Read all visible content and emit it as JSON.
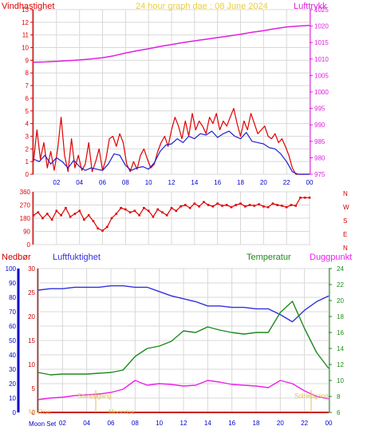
{
  "header": {
    "title": "24 hour graph dae : 08 June 2024",
    "wind_label": "Vindhastighet",
    "pressure_label": "Lufttrykk"
  },
  "colors": {
    "wind": "#e00000",
    "gust_avg": "#2020d0",
    "pressure": "#e020e0",
    "direction": "#e00000",
    "humidity": "#3030e0",
    "temperature": "#1e8a1e",
    "dewpoint": "#ee22ee",
    "rain": "#cc0000",
    "title": "#e8d040",
    "sun_events": "#e0c050",
    "rain_axis": "#0000cc"
  },
  "bottom_labels": {
    "rain_label": "Nedbør",
    "humidity_label": "Luftfuktighet",
    "temperature_label": "Temperatur",
    "dewpoint_label": "Duggpunkt",
    "moon_set": "Moon Set",
    "moonrise": "Moonrise",
    "sunrise": "Soloppgang",
    "sunset": "Solnedgang",
    "moon_rise_short": "Mr Rise"
  },
  "direction_letters": [
    "N",
    "W",
    "S",
    "E",
    "N"
  ],
  "chart_data": [
    {
      "type": "line",
      "title": "24 hour graph dae : 08 June 2024",
      "xlabel": "",
      "x_ticks": [
        "02",
        "04",
        "06",
        "08",
        "10",
        "12",
        "14",
        "16",
        "18",
        "20",
        "22",
        "00"
      ],
      "x_range_hours": [
        0,
        24
      ],
      "y_left_label": "Vindhastighet",
      "y_left_range": [
        0,
        13
      ],
      "y_left_ticks": [
        "0",
        "1",
        "2",
        "3",
        "4",
        "5",
        "6",
        "7",
        "8",
        "9",
        "10",
        "11",
        "12",
        "13"
      ],
      "y_right_label": "Lufttrykk",
      "y_right_range": [
        975,
        1025
      ],
      "y_right_ticks": [
        "975",
        "980",
        "985",
        "990",
        "995",
        "1000",
        "1005",
        "1010",
        "1015",
        "1020",
        "1025"
      ],
      "series": [
        {
          "name": "Vindhastighet",
          "axis": "left",
          "hours": [
            0.0,
            0.3,
            0.6,
            0.9,
            1.2,
            1.5,
            1.8,
            2.1,
            2.4,
            2.7,
            3.0,
            3.3,
            3.6,
            3.9,
            4.2,
            4.5,
            4.8,
            5.1,
            5.4,
            5.7,
            6.0,
            6.3,
            6.6,
            6.9,
            7.2,
            7.5,
            7.8,
            8.1,
            8.4,
            8.7,
            9.0,
            9.3,
            9.6,
            9.9,
            10.2,
            10.5,
            10.8,
            11.1,
            11.4,
            11.7,
            12.0,
            12.3,
            12.6,
            12.9,
            13.2,
            13.5,
            13.8,
            14.1,
            14.4,
            14.7,
            15.0,
            15.3,
            15.6,
            15.9,
            16.2,
            16.5,
            16.8,
            17.1,
            17.4,
            17.7,
            18.0,
            18.3,
            18.6,
            18.9,
            19.2,
            19.5,
            19.8,
            20.1,
            20.4,
            20.7,
            21.0,
            21.3,
            21.6,
            21.9,
            22.2,
            22.5,
            22.8,
            23.1,
            23.4,
            23.7,
            24.0
          ],
          "values": [
            1.0,
            3.5,
            1.2,
            2.5,
            0.5,
            1.8,
            0.3,
            2.0,
            4.5,
            1.5,
            0.2,
            2.8,
            0.5,
            1.5,
            0.3,
            0.8,
            2.5,
            0.2,
            1.0,
            2.0,
            0.3,
            1.2,
            2.8,
            3.0,
            2.2,
            3.2,
            2.5,
            0.8,
            0.2,
            1.0,
            0.4,
            1.5,
            2.0,
            1.2,
            0.5,
            0.8,
            1.8,
            2.5,
            3.0,
            2.2,
            3.5,
            4.5,
            3.8,
            2.8,
            4.2,
            3.0,
            4.8,
            3.5,
            4.2,
            3.8,
            3.2,
            4.5,
            4.0,
            4.8,
            3.5,
            4.2,
            3.8,
            4.5,
            5.2,
            4.0,
            3.0,
            4.2,
            3.5,
            4.8,
            4.0,
            3.2,
            3.5,
            3.8,
            3.0,
            2.8,
            3.2,
            2.5,
            2.8,
            2.2,
            1.5,
            0.5,
            0.0,
            0.0,
            0.0,
            0.0,
            0.0
          ]
        },
        {
          "name": "",
          "axis": "left",
          "hours": [
            0.0,
            0.5,
            1.0,
            1.5,
            2.0,
            2.5,
            3.0,
            3.5,
            4.0,
            4.5,
            5.0,
            5.5,
            6.0,
            6.5,
            7.0,
            7.5,
            8.0,
            8.5,
            9.0,
            9.5,
            10.0,
            10.5,
            11.0,
            11.5,
            12.0,
            12.5,
            13.0,
            13.5,
            14.0,
            14.5,
            15.0,
            15.5,
            16.0,
            16.5,
            17.0,
            17.5,
            18.0,
            18.5,
            19.0,
            19.5,
            20.0,
            20.5,
            21.0,
            21.5,
            22.0,
            22.5,
            23.0,
            23.5,
            24.0
          ],
          "values": [
            1.2,
            1.0,
            1.5,
            0.8,
            1.3,
            1.0,
            0.5,
            1.1,
            0.6,
            0.3,
            0.5,
            0.4,
            0.3,
            0.8,
            1.6,
            1.5,
            0.7,
            0.3,
            0.5,
            0.6,
            0.4,
            0.9,
            1.8,
            2.3,
            2.4,
            2.8,
            2.5,
            3.0,
            2.8,
            3.2,
            3.1,
            3.4,
            2.9,
            3.2,
            3.4,
            3.0,
            2.8,
            3.3,
            2.6,
            2.5,
            2.4,
            2.1,
            2.0,
            1.6,
            1.0,
            0.2,
            0.0,
            0.0,
            0.0
          ]
        },
        {
          "name": "Lufttrykk",
          "axis": "right",
          "hours": [
            0,
            1,
            2,
            3,
            4,
            5,
            6,
            7,
            8,
            9,
            10,
            11,
            12,
            13,
            14,
            15,
            16,
            17,
            18,
            19,
            20,
            21,
            22,
            23,
            24
          ],
          "values": [
            1009.0,
            1009.1,
            1009.3,
            1009.5,
            1009.7,
            1010.0,
            1010.4,
            1011.0,
            1011.8,
            1012.5,
            1013.1,
            1013.8,
            1014.4,
            1015.0,
            1015.5,
            1016.0,
            1016.5,
            1017.0,
            1017.5,
            1018.1,
            1018.6,
            1019.2,
            1019.7,
            1020.0,
            1020.2
          ]
        }
      ]
    },
    {
      "type": "scatter",
      "title": "",
      "x_ticks": [
        "02",
        "04",
        "06",
        "08",
        "10",
        "12",
        "14",
        "16",
        "18",
        "20",
        "22",
        "00"
      ],
      "y_range": [
        0,
        360
      ],
      "y_ticks": [
        "0",
        "90",
        "180",
        "270",
        "360"
      ],
      "series": [
        {
          "name": "",
          "hours": [
            0.0,
            0.4,
            0.8,
            1.2,
            1.6,
            2.0,
            2.4,
            2.8,
            3.2,
            3.6,
            4.0,
            4.4,
            4.8,
            5.2,
            5.6,
            6.0,
            6.4,
            6.8,
            7.2,
            7.6,
            8.0,
            8.4,
            8.8,
            9.2,
            9.6,
            10.0,
            10.4,
            10.8,
            11.2,
            11.6,
            12.0,
            12.4,
            12.8,
            13.2,
            13.6,
            14.0,
            14.4,
            14.8,
            15.2,
            15.6,
            16.0,
            16.4,
            16.8,
            17.2,
            17.6,
            18.0,
            18.4,
            18.8,
            19.2,
            19.6,
            20.0,
            20.4,
            20.8,
            21.2,
            21.6,
            22.0,
            22.4,
            22.8,
            23.2,
            23.6,
            24.0
          ],
          "values": [
            200,
            220,
            180,
            210,
            170,
            230,
            200,
            250,
            190,
            210,
            230,
            170,
            200,
            160,
            110,
            95,
            120,
            180,
            210,
            250,
            240,
            220,
            230,
            200,
            250,
            230,
            190,
            240,
            220,
            200,
            250,
            230,
            260,
            270,
            250,
            280,
            260,
            290,
            270,
            260,
            280,
            265,
            270,
            255,
            270,
            280,
            260,
            270,
            265,
            275,
            260,
            255,
            280,
            270,
            265,
            255,
            270,
            265,
            320,
            320,
            320
          ]
        }
      ]
    },
    {
      "type": "line",
      "title": "",
      "x_ticks": [
        "02",
        "04",
        "06",
        "08",
        "10",
        "12",
        "14",
        "16",
        "18",
        "20",
        "22",
        "00"
      ],
      "y_humidity_range": [
        0,
        100
      ],
      "y_humidity_ticks": [
        "0",
        "10",
        "20",
        "30",
        "40",
        "50",
        "60",
        "70",
        "80",
        "90",
        "100"
      ],
      "y_rain_range": [
        0,
        30
      ],
      "y_rain_ticks": [
        "0",
        "5",
        "10",
        "15",
        "20",
        "25",
        "30"
      ],
      "y_temp_range": [
        6,
        24
      ],
      "y_temp_ticks": [
        "6",
        "8",
        "10",
        "12",
        "14",
        "16",
        "18",
        "20",
        "22",
        "24"
      ],
      "series": [
        {
          "name": "Luftfuktighet",
          "axis": "humidity",
          "hours": [
            0,
            1,
            2,
            3,
            4,
            5,
            6,
            7,
            8,
            9,
            10,
            11,
            12,
            13,
            14,
            15,
            16,
            17,
            18,
            19,
            20,
            21,
            22,
            23,
            24
          ],
          "values": [
            85,
            86,
            86,
            87,
            87,
            87,
            88,
            88,
            87,
            87,
            84,
            81,
            79,
            77,
            74,
            74,
            73,
            73,
            72,
            72,
            68,
            63,
            71,
            77,
            81
          ]
        },
        {
          "name": "Temperatur",
          "axis": "temp",
          "hours": [
            0,
            1,
            2,
            3,
            4,
            5,
            6,
            7,
            8,
            9,
            10,
            11,
            12,
            13,
            14,
            15,
            16,
            17,
            18,
            19,
            20,
            21,
            22,
            23,
            24
          ],
          "values": [
            11.0,
            10.7,
            10.8,
            10.8,
            10.8,
            10.9,
            11.0,
            11.3,
            13.0,
            14.0,
            14.3,
            14.9,
            16.2,
            16.0,
            16.7,
            16.3,
            16.0,
            15.8,
            16.0,
            16.0,
            18.5,
            19.9,
            16.5,
            13.5,
            11.5
          ]
        },
        {
          "name": "Duggpunkt",
          "axis": "temp",
          "hours": [
            0,
            1,
            2,
            3,
            4,
            5,
            6,
            7,
            8,
            9,
            10,
            11,
            12,
            13,
            14,
            15,
            16,
            17,
            18,
            19,
            20,
            21,
            22,
            23,
            24
          ],
          "values": [
            7.6,
            7.8,
            7.9,
            8.1,
            8.2,
            8.3,
            8.5,
            8.9,
            10.0,
            9.4,
            9.6,
            9.5,
            9.3,
            9.4,
            10.0,
            9.8,
            9.5,
            9.4,
            9.3,
            9.1,
            10.0,
            9.6,
            8.7,
            8.0,
            7.7
          ]
        },
        {
          "name": "Nedbør",
          "axis": "rain",
          "hours": [
            0,
            24
          ],
          "values": [
            0,
            0
          ]
        }
      ]
    }
  ]
}
